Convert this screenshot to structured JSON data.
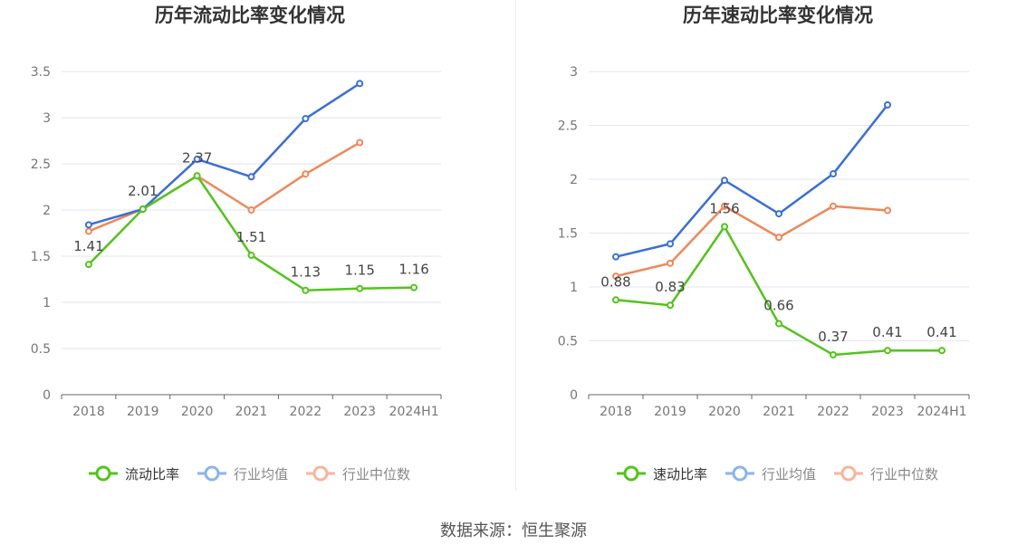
{
  "source_text": "数据来源：恒生聚源",
  "chart_data": [
    {
      "type": "line",
      "title": "历年流动比率变化情况",
      "xlabel": "",
      "ylabel": "",
      "categories": [
        "2018",
        "2019",
        "2020",
        "2021",
        "2022",
        "2023",
        "2024H1"
      ],
      "ylim": [
        0,
        3.5
      ],
      "yticks": [
        "0",
        "0.5",
        "1",
        "1.5",
        "2",
        "2.5",
        "3",
        "3.5"
      ],
      "grid": true,
      "legend_position": "bottom",
      "series": [
        {
          "name": "流动比率",
          "color": "#52c41a",
          "labeled": true,
          "values": [
            1.41,
            2.01,
            2.37,
            1.51,
            1.13,
            1.15,
            1.16
          ],
          "labels": [
            "1.41",
            "2.01",
            "2.37",
            "1.51",
            "1.13",
            "1.15",
            "1.16"
          ]
        },
        {
          "name": "行业均值",
          "color": "#3a6fd8",
          "labeled": false,
          "values": [
            1.84,
            2.01,
            2.55,
            2.36,
            2.99,
            3.37,
            null
          ]
        },
        {
          "name": "行业中位数",
          "color": "#f0875a",
          "labeled": false,
          "values": [
            1.77,
            2.01,
            2.37,
            2.0,
            2.39,
            2.73,
            null
          ]
        }
      ]
    },
    {
      "type": "line",
      "title": "历年速动比率变化情况",
      "xlabel": "",
      "ylabel": "",
      "categories": [
        "2018",
        "2019",
        "2020",
        "2021",
        "2022",
        "2023",
        "2024H1"
      ],
      "ylim": [
        0,
        3
      ],
      "yticks": [
        "0",
        "0.5",
        "1",
        "1.5",
        "2",
        "2.5",
        "3"
      ],
      "grid": true,
      "legend_position": "bottom",
      "series": [
        {
          "name": "速动比率",
          "color": "#52c41a",
          "labeled": true,
          "values": [
            0.88,
            0.83,
            1.56,
            0.66,
            0.37,
            0.41,
            0.41
          ],
          "labels": [
            "0.88",
            "0.83",
            "1.56",
            "0.66",
            "0.37",
            "0.41",
            "0.41"
          ]
        },
        {
          "name": "行业均值",
          "color": "#3a6fd8",
          "labeled": false,
          "values": [
            1.28,
            1.4,
            1.99,
            1.68,
            2.05,
            2.69,
            null
          ]
        },
        {
          "name": "行业中位数",
          "color": "#f0875a",
          "labeled": false,
          "values": [
            1.1,
            1.22,
            1.75,
            1.46,
            1.75,
            1.71,
            null
          ]
        }
      ]
    }
  ]
}
